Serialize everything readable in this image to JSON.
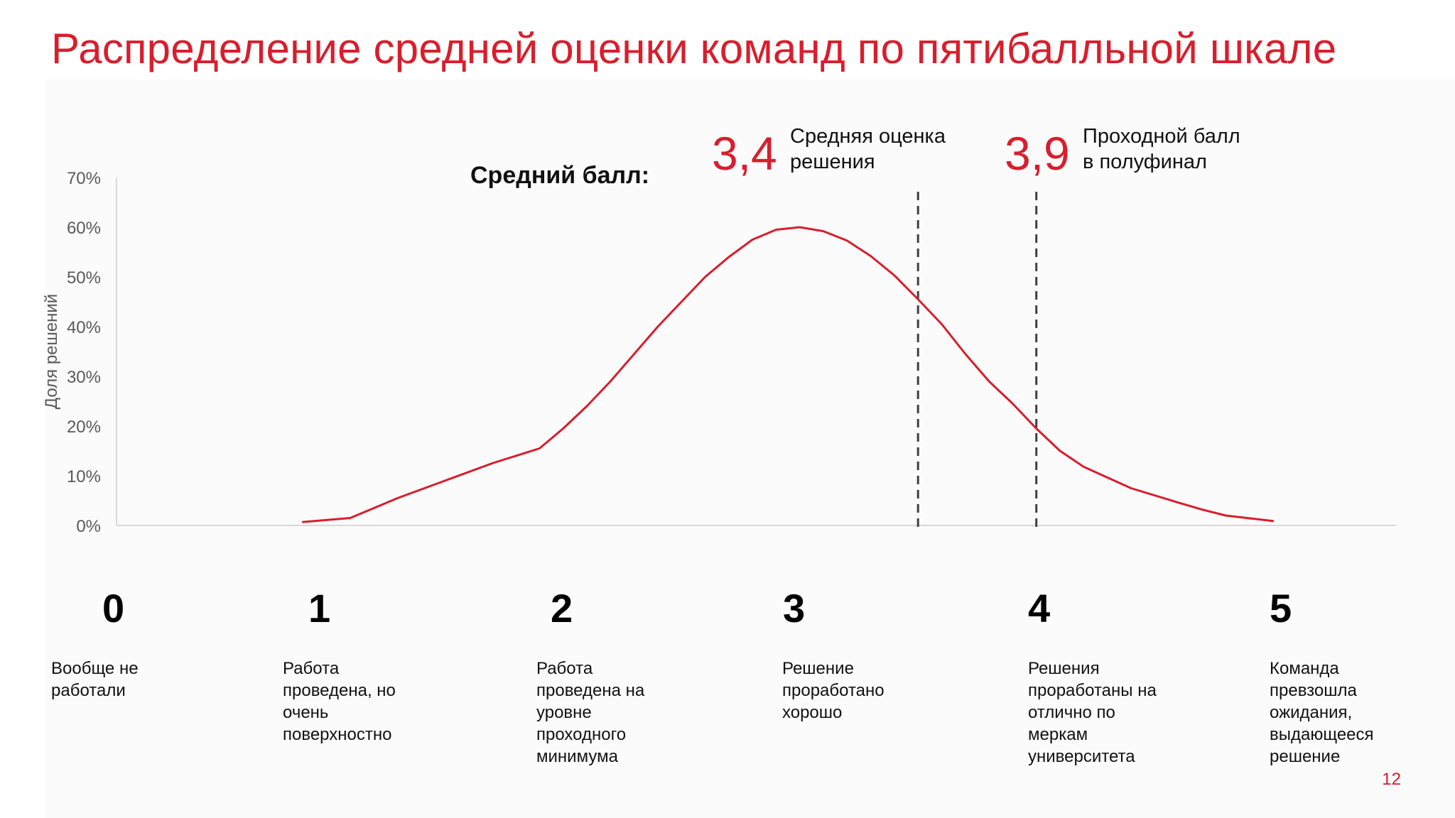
{
  "slide": {
    "title": "Распределение средней оценки команд по пятибалльной шкале",
    "page_number": "12",
    "mean_label": "Средний балл:"
  },
  "annotations": [
    {
      "value": "3,4",
      "text_line1": "Средняя оценка",
      "text_line2": "решения"
    },
    {
      "value": "3,9",
      "text_line1": "Проходной балл",
      "text_line2": "в полуфинал"
    }
  ],
  "scale": [
    {
      "number": "0",
      "description": "Вообще не работали"
    },
    {
      "number": "1",
      "description": "Работа проведена, но очень поверхностно"
    },
    {
      "number": "2",
      "description": "Работа проведена на уровне проходного минимума"
    },
    {
      "number": "3",
      "description": "Решение проработано хорошо"
    },
    {
      "number": "4",
      "description": "Решения проработаны на отлично по меркам университета"
    },
    {
      "number": "5",
      "description": "Команда превзошла ожидания, выдающееся решение"
    }
  ],
  "chart_data": {
    "type": "line",
    "ylabel": "Доля решений",
    "xlim": [
      0,
      5.5
    ],
    "ylim": [
      0,
      70
    ],
    "y_ticks": [
      "0%",
      "10%",
      "20%",
      "30%",
      "40%",
      "50%",
      "60%",
      "70%"
    ],
    "grid": false,
    "series": [
      {
        "x": [
          0.8,
          1.0,
          1.2,
          1.4,
          1.6,
          1.8,
          1.9,
          2.0,
          2.1,
          2.3,
          2.5,
          2.6,
          2.7,
          2.8,
          2.9,
          3.0,
          3.1,
          3.2,
          3.3,
          3.4,
          3.5,
          3.6,
          3.7,
          3.8,
          3.9,
          4.0,
          4.1,
          4.3,
          4.5,
          4.6,
          4.7,
          4.9
        ],
        "y": [
          0.7,
          1.5,
          5.5,
          9.0,
          12.5,
          15.5,
          19.5,
          24,
          29,
          40,
          50,
          54,
          57.5,
          59.5,
          60,
          59.2,
          57.3,
          54.2,
          50.3,
          45.5,
          40.5,
          34.5,
          29,
          24.5,
          19.5,
          15,
          11.8,
          7.5,
          4.6,
          3.2,
          2.0,
          0.9
        ],
        "color": "#d81e2c"
      }
    ],
    "reference_lines": [
      {
        "x": 3.4,
        "style": "dashed"
      },
      {
        "x": 3.9,
        "style": "dashed"
      }
    ]
  }
}
